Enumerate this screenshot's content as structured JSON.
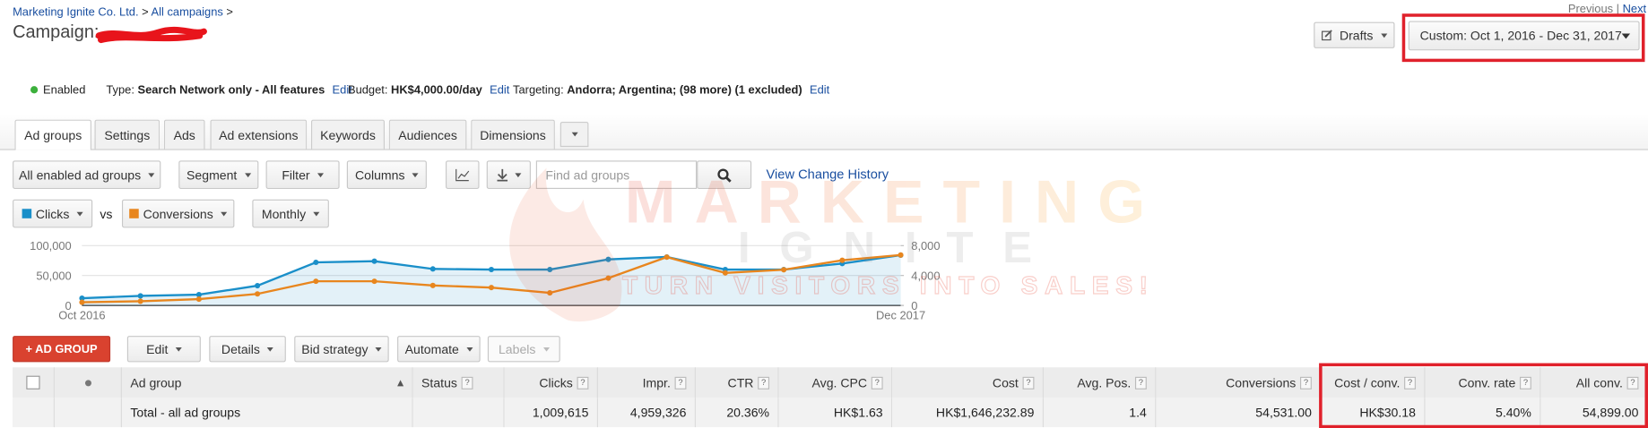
{
  "breadcrumb": {
    "account": "Marketing Ignite Co. Ltd.",
    "campaigns": "All campaigns",
    "separator": ">"
  },
  "pager": {
    "previous": "Previous",
    "separator": "|",
    "next": "Next"
  },
  "header": {
    "title": "Campaign:",
    "drafts": "Drafts",
    "date_range": "Custom: Oct 1, 2016 - Dec 31, 2017"
  },
  "status": {
    "state": "Enabled",
    "type_label": "Type:",
    "type_value": "Search Network only - All features",
    "edit": "Edit",
    "budget_label": "Budget:",
    "budget_value": "HK$4,000.00/day",
    "targeting_label": "Targeting:",
    "targeting_value": "Andorra; Argentina; (98 more) (1 excluded)"
  },
  "tabs": [
    "Ad groups",
    "Settings",
    "Ads",
    "Ad extensions",
    "Keywords",
    "Audiences",
    "Dimensions"
  ],
  "toolbar": {
    "filter_scope": "All enabled ad groups",
    "segment": "Segment",
    "filter": "Filter",
    "columns": "Columns",
    "search_placeholder": "Find ad groups",
    "history": "View Change History",
    "vs": "vs",
    "granularity": "Monthly"
  },
  "actions": [
    "+ AD GROUP",
    "Edit",
    "Details",
    "Bid strategy",
    "Automate",
    "Labels"
  ],
  "watermark": {
    "brand": "MARKETING",
    "brand2": "IGNITE",
    "tagline": "TURN VISITORS INTO SALES!"
  },
  "chart_data": {
    "type": "line",
    "categories": [
      "Oct 2016",
      null,
      null,
      null,
      null,
      null,
      null,
      null,
      null,
      null,
      null,
      null,
      null,
      null,
      "Dec 2017"
    ],
    "series": [
      {
        "name": "Clicks",
        "color": "#1a8fc9",
        "values": [
          12000,
          16000,
          18000,
          33000,
          72000,
          74000,
          61000,
          60000,
          60000,
          77000,
          81000,
          60000,
          60000,
          70000,
          84000
        ]
      },
      {
        "name": "Conversions",
        "color": "#e8861e",
        "axis": "y2",
        "values": [
          420,
          560,
          840,
          1540,
          3230,
          3230,
          2670,
          2390,
          1680,
          3650,
          6460,
          4350,
          4770,
          6040,
          6740
        ]
      }
    ],
    "ylim": [
      0,
      100000
    ],
    "yticks": [
      0,
      {
        "value": 50000,
        "label": "50,000"
      },
      {
        "value": 100000,
        "label": "100,000"
      }
    ],
    "y2lim": [
      0,
      8000
    ],
    "y2ticks": [
      0,
      {
        "value": 4000,
        "label": "4,000"
      },
      {
        "value": 8000,
        "label": "8,000"
      }
    ],
    "grid": true
  },
  "table": {
    "help": "?",
    "columns": [
      "Ad group",
      "Status",
      "Clicks",
      "Impr.",
      "CTR",
      "Avg. CPC",
      "Cost",
      "Avg. Pos.",
      "Conversions",
      "Cost / conv.",
      "Conv. rate",
      "All conv."
    ],
    "total": {
      "label": "Total - all ad groups",
      "values": [
        "1,009,615",
        "4,959,326",
        "20.36%",
        "HK$1.63",
        "HK$1,646,232.89",
        "1.4",
        "54,531.00",
        "HK$30.18",
        "5.40%",
        "54,899.00"
      ]
    }
  }
}
